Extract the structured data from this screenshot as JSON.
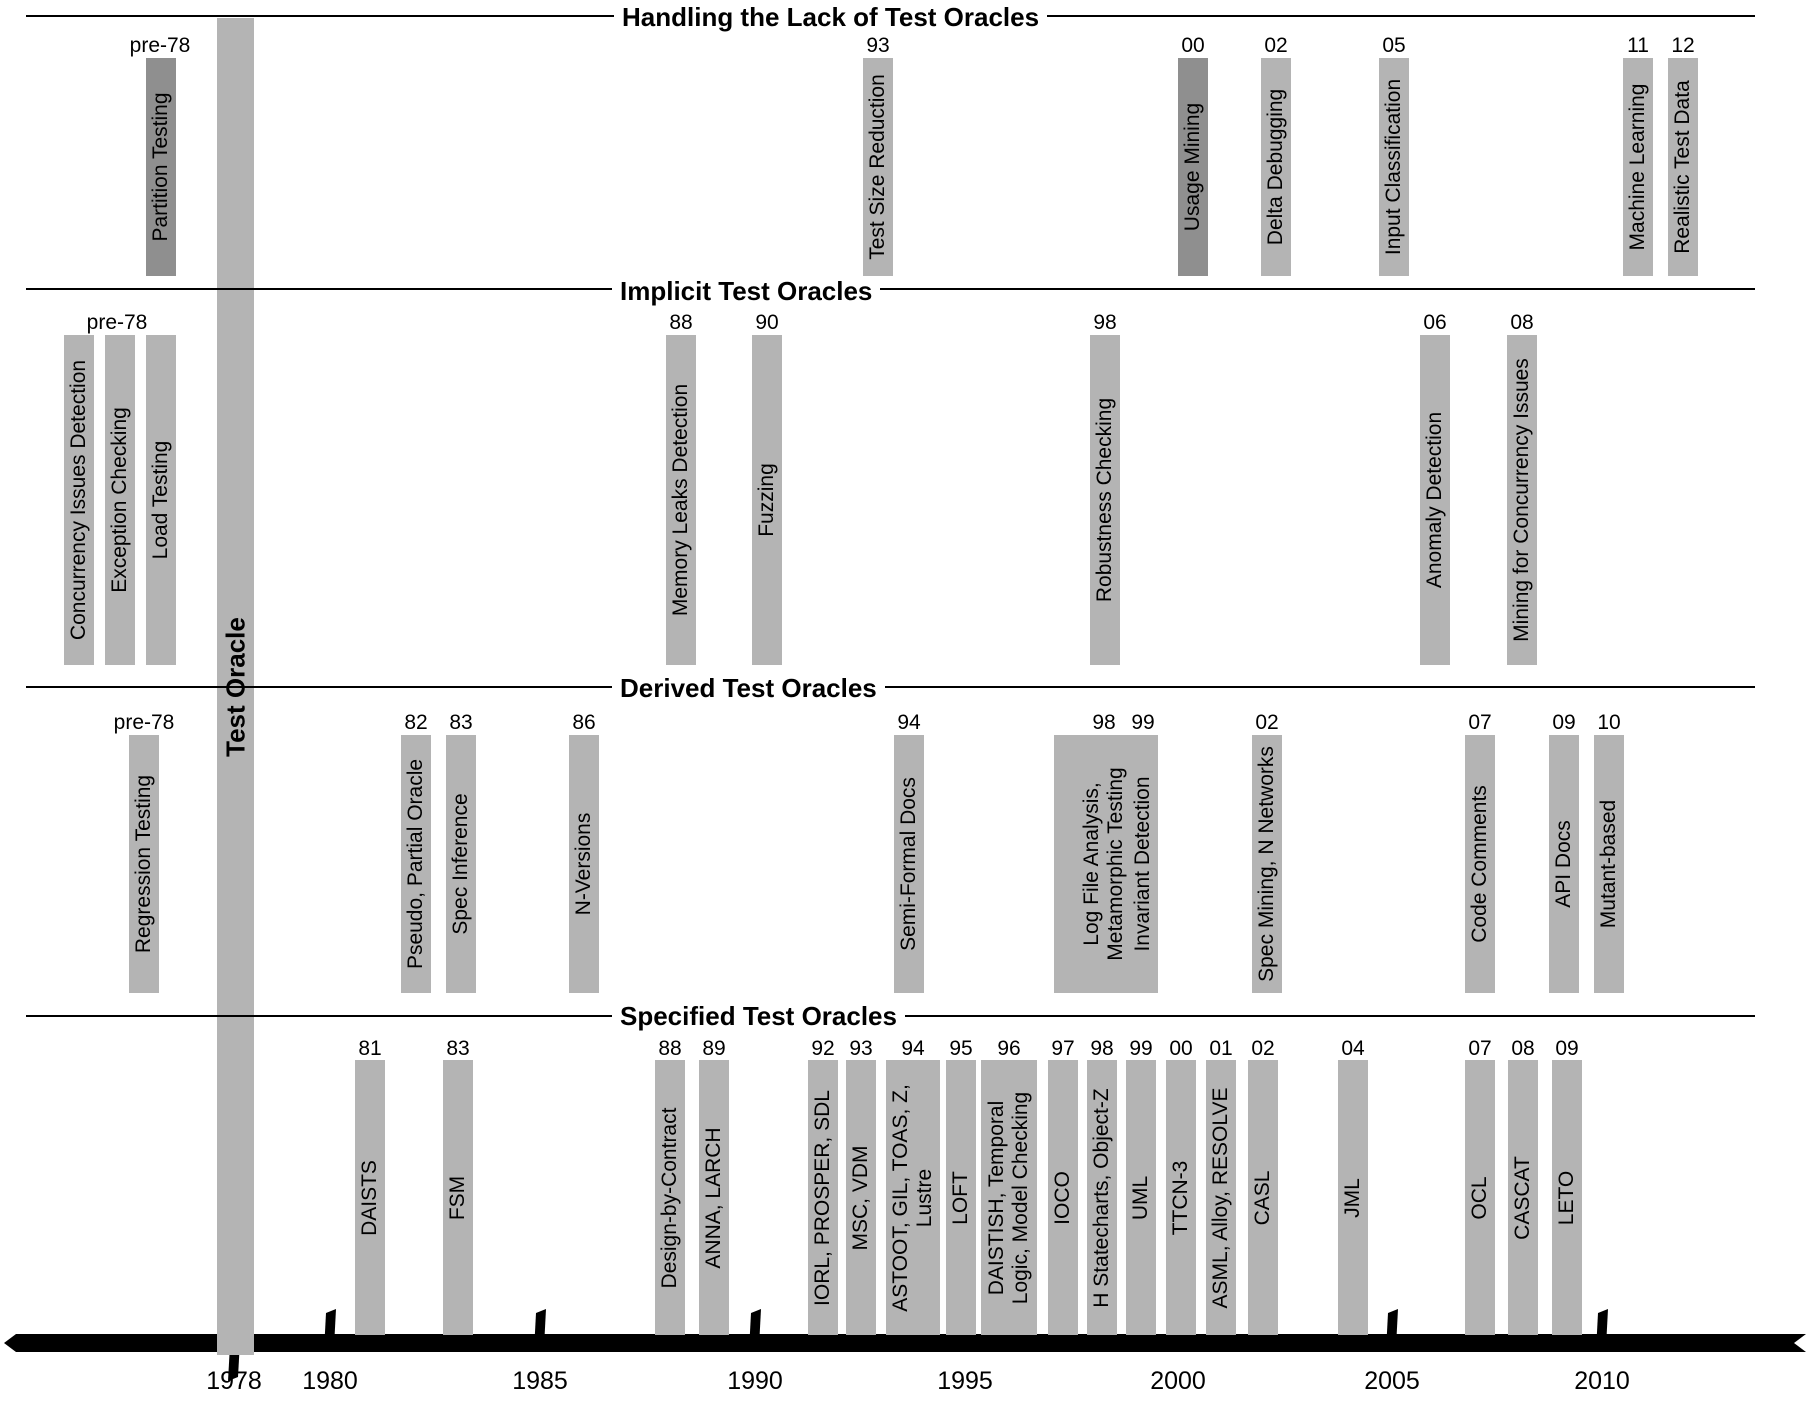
{
  "main_bar": {
    "label": "Test Oracle",
    "year": 1978
  },
  "axis": {
    "ticks": [
      {
        "year": 1978,
        "label": "1978"
      },
      {
        "year": 1980,
        "label": "1980"
      },
      {
        "year": 1985,
        "label": "1985"
      },
      {
        "year": 1990,
        "label": "1990"
      },
      {
        "year": 1995,
        "label": "1995"
      },
      {
        "year": 2000,
        "label": "2000"
      },
      {
        "year": 2005,
        "label": "2005"
      },
      {
        "year": 2010,
        "label": "2010"
      }
    ]
  },
  "sections": [
    {
      "title": "Handling the Lack of Test Oracles",
      "entries": [
        {
          "year_label": "pre-78",
          "label": "Partition Testing",
          "dark": true
        },
        {
          "year_label": "93",
          "label": "Test Size Reduction"
        },
        {
          "year_label": "00",
          "label": "Usage Mining",
          "dark": true
        },
        {
          "year_label": "02",
          "label": "Delta Debugging"
        },
        {
          "year_label": "05",
          "label": "Input Classification"
        },
        {
          "year_label": "11",
          "label": "Machine Learning"
        },
        {
          "year_label": "12",
          "label": "Realistic Test Data"
        }
      ]
    },
    {
      "title": "Implicit Test Oracles",
      "entries": [
        {
          "year_label": "pre-78",
          "label": "Concurrency Issues Detection"
        },
        {
          "year_label": "",
          "label": "Exception Checking"
        },
        {
          "year_label": "",
          "label": "Load Testing"
        },
        {
          "year_label": "88",
          "label": "Memory Leaks Detection"
        },
        {
          "year_label": "90",
          "label": "Fuzzing"
        },
        {
          "year_label": "98",
          "label": "Robustness Checking"
        },
        {
          "year_label": "06",
          "label": "Anomaly Detection"
        },
        {
          "year_label": "08",
          "label": "Mining for Concurrency Issues"
        }
      ]
    },
    {
      "title": "Derived Test Oracles",
      "entries": [
        {
          "year_label": "pre-78",
          "label": "Regression Testing"
        },
        {
          "year_label": "82",
          "label": "Pseudo, Partial Oracle"
        },
        {
          "year_label": "83",
          "label": "Spec Inference"
        },
        {
          "year_label": "86",
          "label": "N-Versions"
        },
        {
          "year_label": "94",
          "label": "Semi-Formal Docs"
        },
        {
          "year_label": "98",
          "label": "Log File Analysis,\nMetamorphic Testing"
        },
        {
          "year_label": "99",
          "label": "Invariant Detection"
        },
        {
          "year_label": "02",
          "label": "Spec Mining, N Networks"
        },
        {
          "year_label": "07",
          "label": "Code Comments"
        },
        {
          "year_label": "09",
          "label": "API Docs"
        },
        {
          "year_label": "10",
          "label": "Mutant-based"
        }
      ]
    },
    {
      "title": "Specified Test Oracles",
      "entries": [
        {
          "year_label": "81",
          "label": "DAISTS"
        },
        {
          "year_label": "83",
          "label": "FSM"
        },
        {
          "year_label": "88",
          "label": "Design-by-Contract"
        },
        {
          "year_label": "89",
          "label": "ANNA, LARCH"
        },
        {
          "year_label": "92",
          "label": "IORL, PROSPER, SDL"
        },
        {
          "year_label": "93",
          "label": "MSC, VDM"
        },
        {
          "year_label": "94",
          "label": "ASTOOT, GIL, TOAS, Z,\nLustre"
        },
        {
          "year_label": "95",
          "label": "LOFT"
        },
        {
          "year_label": "96",
          "label": "DAISTISH, Temporal\nLogic, Model Checking"
        },
        {
          "year_label": "97",
          "label": "IOCO"
        },
        {
          "year_label": "98",
          "label": "H Statecharts, Object-Z"
        },
        {
          "year_label": "99",
          "label": "UML"
        },
        {
          "year_label": "00",
          "label": "TTCN-3"
        },
        {
          "year_label": "01",
          "label": "ASML, Alloy, RESOLVE"
        },
        {
          "year_label": "02",
          "label": "CASL"
        },
        {
          "year_label": "04",
          "label": "JML"
        },
        {
          "year_label": "07",
          "label": "OCL"
        },
        {
          "year_label": "08",
          "label": "CASCAT"
        },
        {
          "year_label": "09",
          "label": "LETO"
        }
      ]
    }
  ]
}
